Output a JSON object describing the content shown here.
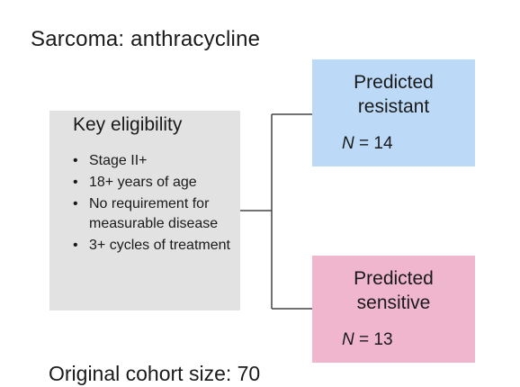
{
  "title": "Sarcoma: anthracycline",
  "eligibility": {
    "heading": "Key eligibility",
    "items": [
      "Stage II+",
      "18+ years of age",
      "No requirement for measurable disease",
      "3+ cycles of treatment"
    ]
  },
  "groups": [
    {
      "name_line1": "Predicted",
      "name_line2": "resistant",
      "n_label": "N",
      "n_value": "= 14",
      "color": "#bcdaf7"
    },
    {
      "name_line1": "Predicted",
      "name_line2": "sensitive",
      "n_label": "N",
      "n_value": "= 13",
      "color": "#efb6cd"
    }
  ],
  "footer": "Original cohort size: 70"
}
